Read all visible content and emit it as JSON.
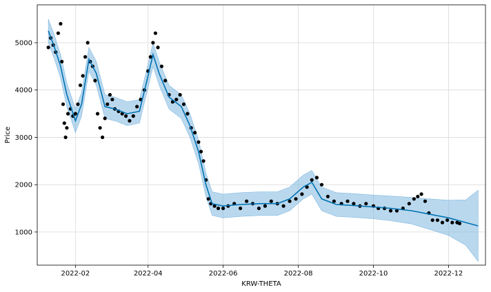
{
  "chart_data": {
    "type": "line",
    "title": "",
    "xlabel": "KRW-THETA",
    "ylabel": "Price",
    "xlim": [
      "2022-01-01",
      "2022-12-31"
    ],
    "ylim": [
      300,
      5800
    ],
    "grid": true,
    "x_ticks": [
      "2022-02-01",
      "2022-04-01",
      "2022-06-01",
      "2022-08-01",
      "2022-10-01",
      "2022-12-01"
    ],
    "x_tick_labels": [
      "2022-02",
      "2022-04",
      "2022-06",
      "2022-08",
      "2022-10",
      "2022-12"
    ],
    "y_ticks": [
      1000,
      2000,
      3000,
      4000,
      5000
    ],
    "y_tick_labels": [
      "1000",
      "2000",
      "3000",
      "4000",
      "5000"
    ],
    "colors": {
      "forecast": "#0072B2",
      "band": "#7fb8e0",
      "observed": "#000000"
    },
    "series": [
      {
        "role": "forecast",
        "x": [
          "2022-01-10",
          "2022-01-15",
          "2022-01-20",
          "2022-01-25",
          "2022-02-01",
          "2022-02-06",
          "2022-02-12",
          "2022-02-18",
          "2022-02-25",
          "2022-03-05",
          "2022-03-15",
          "2022-03-25",
          "2022-04-01",
          "2022-04-05",
          "2022-04-10",
          "2022-04-18",
          "2022-04-28",
          "2022-05-05",
          "2022-05-12",
          "2022-05-18",
          "2022-05-23",
          "2022-06-01",
          "2022-06-15",
          "2022-07-01",
          "2022-07-15",
          "2022-07-25",
          "2022-08-05",
          "2022-08-12",
          "2022-08-20",
          "2022-09-01",
          "2022-09-15",
          "2022-10-01",
          "2022-10-15",
          "2022-11-01",
          "2022-11-15",
          "2022-12-01",
          "2022-12-15",
          "2022-12-25"
        ],
        "y": [
          5250,
          4900,
          4500,
          3900,
          3350,
          3700,
          4650,
          4350,
          3650,
          3600,
          3500,
          3550,
          4300,
          4750,
          4350,
          3850,
          3650,
          3250,
          2700,
          2000,
          1600,
          1550,
          1580,
          1600,
          1600,
          1700,
          1950,
          2050,
          1700,
          1580,
          1560,
          1530,
          1500,
          1450,
          1380,
          1300,
          1200,
          1130
        ]
      },
      {
        "role": "uncertainty-band",
        "x": [
          "2022-01-10",
          "2022-01-15",
          "2022-01-20",
          "2022-01-25",
          "2022-02-01",
          "2022-02-06",
          "2022-02-12",
          "2022-02-18",
          "2022-02-25",
          "2022-03-05",
          "2022-03-15",
          "2022-03-25",
          "2022-04-01",
          "2022-04-05",
          "2022-04-10",
          "2022-04-18",
          "2022-04-28",
          "2022-05-05",
          "2022-05-12",
          "2022-05-18",
          "2022-05-23",
          "2022-06-01",
          "2022-06-15",
          "2022-07-01",
          "2022-07-15",
          "2022-07-25",
          "2022-08-05",
          "2022-08-12",
          "2022-08-20",
          "2022-09-01",
          "2022-09-15",
          "2022-10-01",
          "2022-10-15",
          "2022-11-01",
          "2022-11-15",
          "2022-12-01",
          "2022-12-15",
          "2022-12-25"
        ],
        "lower": [
          5000,
          4650,
          4250,
          3650,
          3100,
          3450,
          4400,
          4100,
          3400,
          3350,
          3250,
          3300,
          4050,
          4500,
          4100,
          3600,
          3400,
          3000,
          2450,
          1750,
          1350,
          1300,
          1330,
          1350,
          1350,
          1450,
          1700,
          1800,
          1450,
          1330,
          1310,
          1280,
          1240,
          1170,
          1060,
          930,
          720,
          380
        ],
        "upper": [
          5500,
          5150,
          4750,
          4150,
          3600,
          3950,
          4900,
          4600,
          3900,
          3850,
          3750,
          3800,
          4550,
          5000,
          4600,
          4100,
          3900,
          3500,
          2950,
          2250,
          1850,
          1800,
          1830,
          1850,
          1850,
          1950,
          2200,
          2300,
          1950,
          1830,
          1810,
          1780,
          1760,
          1730,
          1700,
          1670,
          1680,
          1880
        ]
      },
      {
        "role": "observed",
        "x": [
          "2022-01-10",
          "2022-01-12",
          "2022-01-14",
          "2022-01-16",
          "2022-01-18",
          "2022-01-20",
          "2022-01-21",
          "2022-01-22",
          "2022-01-23",
          "2022-01-24",
          "2022-01-25",
          "2022-01-26",
          "2022-01-28",
          "2022-01-30",
          "2022-02-01",
          "2022-02-03",
          "2022-02-05",
          "2022-02-07",
          "2022-02-09",
          "2022-02-11",
          "2022-02-13",
          "2022-02-15",
          "2022-02-17",
          "2022-02-19",
          "2022-02-21",
          "2022-02-23",
          "2022-02-25",
          "2022-02-27",
          "2022-03-01",
          "2022-03-03",
          "2022-03-05",
          "2022-03-08",
          "2022-03-11",
          "2022-03-14",
          "2022-03-17",
          "2022-03-20",
          "2022-03-23",
          "2022-03-26",
          "2022-03-29",
          "2022-04-01",
          "2022-04-03",
          "2022-04-05",
          "2022-04-07",
          "2022-04-09",
          "2022-04-12",
          "2022-04-15",
          "2022-04-18",
          "2022-04-21",
          "2022-04-24",
          "2022-04-27",
          "2022-04-30",
          "2022-05-03",
          "2022-05-06",
          "2022-05-09",
          "2022-05-12",
          "2022-05-14",
          "2022-05-16",
          "2022-05-18",
          "2022-05-20",
          "2022-05-22",
          "2022-05-25",
          "2022-05-28",
          "2022-06-01",
          "2022-06-05",
          "2022-06-10",
          "2022-06-15",
          "2022-06-20",
          "2022-06-25",
          "2022-06-30",
          "2022-07-05",
          "2022-07-10",
          "2022-07-15",
          "2022-07-20",
          "2022-07-25",
          "2022-07-30",
          "2022-08-04",
          "2022-08-08",
          "2022-08-12",
          "2022-08-16",
          "2022-08-20",
          "2022-08-25",
          "2022-08-30",
          "2022-09-05",
          "2022-09-10",
          "2022-09-15",
          "2022-09-20",
          "2022-09-25",
          "2022-10-01",
          "2022-10-05",
          "2022-10-10",
          "2022-10-15",
          "2022-10-20",
          "2022-10-25",
          "2022-10-30",
          "2022-11-03",
          "2022-11-06",
          "2022-11-09",
          "2022-11-12",
          "2022-11-15",
          "2022-11-18",
          "2022-11-22",
          "2022-11-26",
          "2022-11-30",
          "2022-12-04",
          "2022-12-08",
          "2022-12-10"
        ],
        "y": [
          4900,
          5100,
          4950,
          4800,
          5200,
          5400,
          4600,
          3700,
          3300,
          3000,
          3200,
          3500,
          3600,
          3450,
          3500,
          3700,
          4100,
          4300,
          4700,
          5000,
          4600,
          4500,
          4200,
          3500,
          3200,
          3000,
          3400,
          3700,
          3900,
          3800,
          3600,
          3550,
          3500,
          3450,
          3350,
          3450,
          3650,
          3800,
          4000,
          4400,
          4700,
          5000,
          5200,
          4900,
          4500,
          4200,
          3900,
          3750,
          3800,
          3900,
          3700,
          3500,
          3200,
          3100,
          2900,
          2700,
          2500,
          2100,
          1700,
          1600,
          1550,
          1500,
          1500,
          1550,
          1600,
          1500,
          1650,
          1600,
          1500,
          1550,
          1650,
          1600,
          1550,
          1650,
          1700,
          1800,
          1950,
          2100,
          2150,
          2000,
          1750,
          1650,
          1600,
          1650,
          1600,
          1550,
          1600,
          1550,
          1500,
          1500,
          1450,
          1450,
          1500,
          1600,
          1700,
          1750,
          1800,
          1650,
          1400,
          1250,
          1250,
          1200,
          1250,
          1200,
          1200,
          1180
        ]
      }
    ]
  }
}
